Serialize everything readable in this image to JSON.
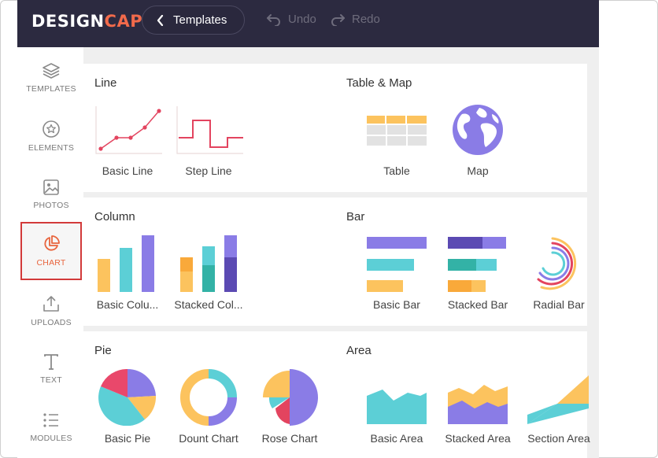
{
  "brand": {
    "logo_main": "DESIGN",
    "logo_accent": "CAP"
  },
  "toolbar": {
    "templates_label": "Templates",
    "undo_label": "Undo",
    "redo_label": "Redo"
  },
  "sidebar": {
    "items": [
      {
        "label": "TEMPLATES",
        "icon": "layers-icon"
      },
      {
        "label": "ELEMENTS",
        "icon": "star-badge-icon"
      },
      {
        "label": "PHOTOS",
        "icon": "image-icon"
      },
      {
        "label": "CHART",
        "icon": "pie-chart-icon",
        "active": true
      },
      {
        "label": "UPLOADS",
        "icon": "upload-icon"
      },
      {
        "label": "TEXT",
        "icon": "text-icon"
      },
      {
        "label": "MODULES",
        "icon": "list-icon"
      }
    ]
  },
  "sections": {
    "line": {
      "title": "Line",
      "items": [
        "Basic Line",
        "Step Line"
      ]
    },
    "table_map": {
      "title": "Table & Map",
      "items": [
        "Table",
        "Map"
      ]
    },
    "column": {
      "title": "Column",
      "items": [
        "Basic Colu...",
        "Stacked Col..."
      ]
    },
    "bar": {
      "title": "Bar",
      "items": [
        "Basic Bar",
        "Stacked Bar",
        "Radial Bar"
      ]
    },
    "pie": {
      "title": "Pie",
      "items": [
        "Basic Pie",
        "Dount Chart",
        "Rose Chart"
      ]
    },
    "area": {
      "title": "Area",
      "items": [
        "Basic Area",
        "Stacked Area",
        "Section Area"
      ]
    }
  },
  "colors": {
    "topbar": "#2c2a40",
    "accent": "#f26a4b",
    "yellow": "#fcc35e",
    "teal": "#5ccfd6",
    "purple": "#8a7ce6",
    "pink": "#e9486b",
    "red": "#e3445f"
  }
}
